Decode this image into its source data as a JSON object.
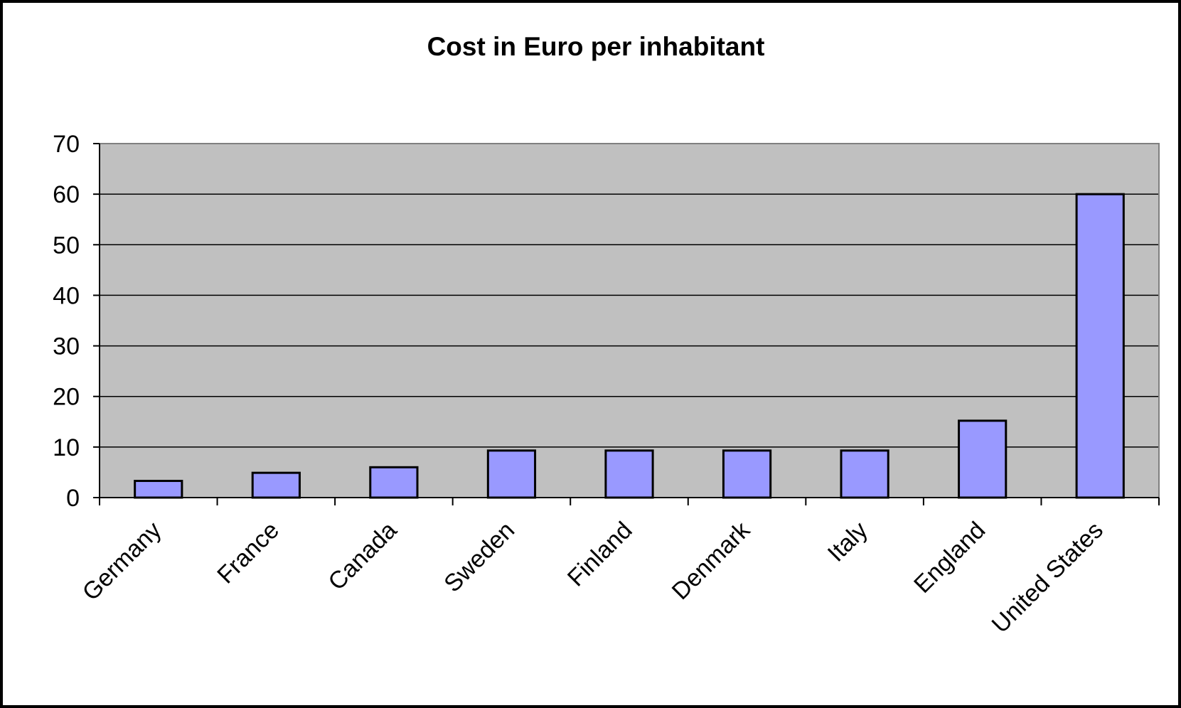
{
  "chart_data": {
    "type": "bar",
    "title": "Cost in Euro per inhabitant",
    "xlabel": "",
    "ylabel": "",
    "categories": [
      "Germany",
      "France",
      "Canada",
      "Sweden",
      "Finland",
      "Denmark",
      "Italy",
      "England",
      "United States"
    ],
    "values": [
      3.3,
      4.9,
      6.0,
      9.3,
      9.3,
      9.3,
      9.3,
      15.2,
      60.0
    ],
    "ylim": [
      0,
      70
    ],
    "yticks": [
      "0",
      "10",
      "20",
      "30",
      "40",
      "50",
      "60",
      "70"
    ],
    "grid": true,
    "legend": "none",
    "colors": {
      "bar_fill": "#9999FF",
      "bar_stroke": "#000000",
      "plot_background": "#C0C0C0",
      "gridline": "#000000",
      "frame": "#000000"
    }
  }
}
